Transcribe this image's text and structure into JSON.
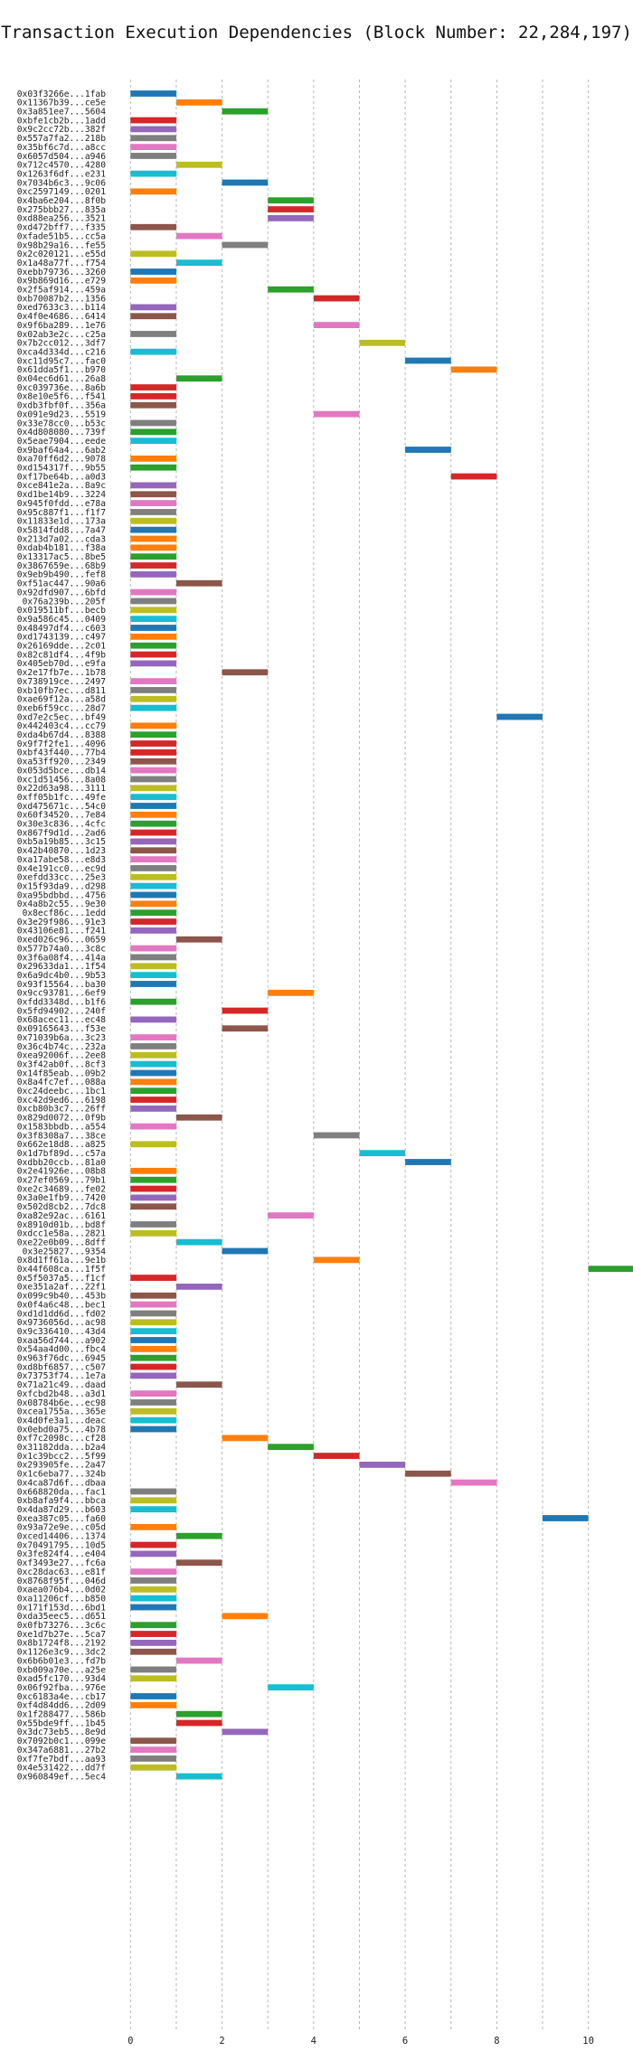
{
  "colors": [
    "#1f77b4",
    "#ff7f0e",
    "#2ca02c",
    "#d62728",
    "#9467bd",
    "#8c564b",
    "#e377c2",
    "#7f7f7f",
    "#bcbd22",
    "#17becf"
  ],
  "chart_data": {
    "type": "bar",
    "orientation": "horizontal",
    "title": "Transaction Execution Dependencies (Block Number: 22,284,197)",
    "xlabel": "",
    "ylabel": "",
    "xlim": [
      -0.5,
      10.6
    ],
    "xticks": [
      0,
      2,
      4,
      6,
      8,
      10
    ],
    "grid": "vertical dashed",
    "legend": "none",
    "bar_width": 1,
    "categories": [
      "0x03f3266e...1fab",
      "0x11367b39...ce5e",
      "0x3a851ee7...5604",
      "0xbfe1cb2b...1add",
      "0x9c2cc72b...382f",
      "0x557a7fa2...218b",
      "0x35bf6c7d...a8cc",
      "0x6057d504...a946",
      "0x712c4570...4280",
      "0x1263f6df...e231",
      "0x7034b6c3...9c06",
      "0xc2597149...0201",
      "0x4ba6e204...8f0b",
      "0x275bbb27...835a",
      "0xd88ea256...3521",
      "0xd472bff7...f335",
      "0xfade51b5...cc5a",
      "0x98b29a16...fe55",
      "0x2c020121...e55d",
      "0x1a48a77f...f754",
      "0xebb79736...3260",
      "0x9b869d16...e729",
      "0x2f5af914...459a",
      "0xb70087b2...1356",
      "0xed7633c3...b114",
      "0x4f0e4686...6414",
      "0x9f6ba289...1e76",
      "0x02ab3e2c...c25a",
      "0x7b2cc012...3df7",
      "0xca4d334d...c216",
      "0xc11d95c7...fac0",
      "0x61dda5f1...b970",
      "0x04ec6d61...26a8",
      "0xc039736e...8a6b",
      "0x8e10e5f6...f541",
      "0xdb3fbf0f...356a",
      "0x091e9d23...5519",
      "0x33e78cc0...b53c",
      "0x4d808080...739f",
      "0x5eae7904...eede",
      "0x9baf64a4...6ab2",
      "0xa70ff6d2...9078",
      "0xd154317f...9b55",
      "0xf17be64b...a0d3",
      "0xce841e2a...8a9c",
      "0xd1be14b9...3224",
      "0x945f0fdd...e78a",
      "0x95c887f1...f1f7",
      "0x11833e1d...173a",
      "0x5814fdd8...7a47",
      "0x213d7a02...cda3",
      "0xdab4b181...f38a",
      "0x13317ac5...8be5",
      "0x3867659e...68b9",
      "0x9eb9b490...fef8",
      "0xf51ac447...90a6",
      "0x92dfd907...6bfd",
      "0x76a239b...205f",
      "0x019511bf...becb",
      "0x9a586c45...0409",
      "0x48497df4...c603",
      "0xd1743139...c497",
      "0x26169dde...2c01",
      "0x82c81df4...4f9b",
      "0x405eb70d...e9fa",
      "0x2e17fb7e...1b78",
      "0x738919ce...2497",
      "0xb10fb7ec...d811",
      "0xae69f12a...a58d",
      "0xeb6f59cc...28d7",
      "0xd7e2c5ec...bf49",
      "0x442403c4...cc79",
      "0xda4b67d4...8388",
      "0x9f7f2fe1...4096",
      "0xbf43f440...77b4",
      "0xa53ff920...2349",
      "0x053d5bce...db14",
      "0xc1d51456...8a08",
      "0x22d63a98...3111",
      "0xff05b1fc...49fe",
      "0xd475671c...54c0",
      "0x60f34520...7e84",
      "0x30e3c836...4cfc",
      "0x867f9d1d...2ad6",
      "0xb5a19b85...3c15",
      "0x42b40870...1d23",
      "0xa17abe58...e8d3",
      "0x4e191cc0...ec9d",
      "0xefdd33cc...25e3",
      "0x15f93da9...d298",
      "0xa95bdbbd...4756",
      "0x4a8b2c55...9e30",
      "0x8ecf86c...1edd",
      "0x3e29f986...91e3",
      "0x43106e81...f241",
      "0xed026c96...0659",
      "0x577b74a0...3c8c",
      "0x3f6a08f4...414a",
      "0x29633da1...1f54",
      "0x6a9dc4b0...9b53",
      "0x93f15564...ba30",
      "0x9cc93781...6ef9",
      "0xfdd3348d...b1f6",
      "0x5fd94902...240f",
      "0x68acec11...ec48",
      "0x09165643...f53e",
      "0x71039b6a...3c23",
      "0x36c4b74c...232a",
      "0xea92006f...2ee8",
      "0x3f42ab0f...8cf3",
      "0x14f85eab...09b2",
      "0x8a4fc7ef...088a",
      "0xc24deebc...1bc1",
      "0xc42d9ed6...6198",
      "0xcb80b3c7...26ff",
      "0x829d0072...0f9b",
      "0x1583bbdb...a554",
      "0x3f8308a7...38ce",
      "0x662e18d8...a825",
      "0x1d7bf89d...c57a",
      "0xdbb20ccb...81a0",
      "0x2e41926e...08b8",
      "0x27ef0569...79b1",
      "0xe2c34689...fe02",
      "0x3a0e1fb9...7420",
      "0x502d8cb2...7dc8",
      "0xa82e92ac...6161",
      "0x8910d01b...bd8f",
      "0xdcc1e58a...2821",
      "0xe22e0b09...8dff",
      "0x3e25827...9354",
      "0x8d1ff61a...9e1b",
      "0x44f608ca...1f5f",
      "0x5f5037a5...f1cf",
      "0xe351a2af...22f1",
      "0x099c9b40...453b",
      "0x0f4a6c48...bec1",
      "0xd1d1dd6d...fd02",
      "0x9736056d...ac98",
      "0x9c336410...43d4",
      "0xaa56d744...a902",
      "0x54aa4d00...fbc4",
      "0x963f76dc...6945",
      "0xd8bf6857...c507",
      "0x73753f74...1e7a",
      "0x71a21c49...daad",
      "0xfcbd2b48...a3d1",
      "0x08784b6e...ec98",
      "0xcea1755a...365e",
      "0x4d0fe3a1...deac",
      "0x0ebd0a75...4b78",
      "0xf7c2098c...cf28",
      "0x31182dda...b2a4",
      "0x1c39bcc2...5f99",
      "0x293905fe...2a47",
      "0x1c6eba77...324b",
      "0x4ca87d6f...dbaa",
      "0x668820da...fac1",
      "0xb8afa9f4...bbca",
      "0x4da87d29...b603",
      "0xea387c05...fa60",
      "0x93a72e9e...c05d",
      "0xced14406...1374",
      "0x70491795...10d5",
      "0x3fe824f4...e404",
      "0xf3493e27...fc6a",
      "0xc28dac63...e81f",
      "0x8768f95f...046d",
      "0xaea076b4...0d02",
      "0xa11206cf...b850",
      "0x171f153d...6bd1",
      "0xda35eec5...d651",
      "0x0fb73276...3c6c",
      "0xe1d7b27e...5ca7",
      "0x8b1724f8...2192",
      "0x1126e3c9...3dc2",
      "0x6b6b01e3...fd7b",
      "0xb009a70e...a25e",
      "0xad5fc170...93d4",
      "0x06f92fba...976e",
      "0xc6183a4e...cb17",
      "0xf4d84dd6...2d09",
      "0x1f288477...586b",
      "0x55bde9ff...1b45",
      "0x3dc73eb5...8e9d",
      "0x7092b0c1...099e",
      "0x347a6881...27b2",
      "0xf7fe7bdf...aa93",
      "0x4e531422...dd7f",
      "0x960849ef...5ec4"
    ],
    "starts": [
      0,
      1,
      2,
      0,
      0,
      0,
      0,
      0,
      1,
      0,
      2,
      0,
      3,
      3,
      3,
      0,
      1,
      2,
      0,
      1,
      0,
      0,
      3,
      4,
      0,
      0,
      4,
      0,
      5,
      0,
      6,
      7,
      1,
      0,
      0,
      0,
      4,
      0,
      0,
      0,
      6,
      0,
      0,
      7,
      0,
      0,
      0,
      0,
      0,
      0,
      0,
      0,
      0,
      0,
      0,
      1,
      0,
      0,
      0,
      0,
      0,
      0,
      0,
      0,
      0,
      2,
      0,
      0,
      0,
      0,
      8,
      0,
      0,
      0,
      0,
      0,
      0,
      0,
      0,
      0,
      0,
      0,
      0,
      0,
      0,
      0,
      0,
      0,
      0,
      0,
      0,
      0,
      0,
      0,
      0,
      1,
      0,
      0,
      0,
      0,
      0,
      3,
      0,
      2,
      0,
      2,
      0,
      0,
      0,
      0,
      0,
      0,
      0,
      0,
      0,
      1,
      0,
      4,
      0,
      5,
      6,
      0,
      0,
      0,
      0,
      0,
      3,
      0,
      0,
      1,
      2,
      4,
      10,
      0,
      1,
      0,
      0,
      0,
      0,
      0,
      0,
      0,
      0,
      0,
      0,
      1,
      0,
      0,
      0,
      0,
      0,
      2,
      3,
      4,
      5,
      6,
      7,
      0,
      0,
      0,
      9,
      0,
      1,
      0,
      0,
      1,
      0,
      0,
      0,
      0,
      0,
      2,
      0,
      0,
      0,
      0,
      1,
      0,
      0,
      3,
      0,
      0,
      1,
      1,
      2,
      0,
      0,
      0,
      0,
      1
    ],
    "colors_idx": [
      0,
      1,
      2,
      3,
      4,
      7,
      6,
      7,
      8,
      9,
      0,
      1,
      2,
      3,
      4,
      5,
      6,
      7,
      8,
      9,
      0,
      1,
      2,
      3,
      4,
      5,
      6,
      7,
      8,
      9,
      0,
      1,
      2,
      3,
      3,
      5,
      6,
      7,
      2,
      9,
      0,
      1,
      2,
      3,
      4,
      5,
      6,
      7,
      8,
      0,
      1,
      1,
      2,
      3,
      4,
      5,
      6,
      7,
      8,
      9,
      0,
      1,
      2,
      3,
      4,
      5,
      6,
      7,
      8,
      9,
      0,
      1,
      2,
      3,
      3,
      5,
      6,
      7,
      8,
      9,
      0,
      1,
      2,
      3,
      4,
      5,
      6,
      7,
      8,
      9,
      0,
      1,
      2,
      3,
      4,
      5,
      6,
      7,
      8,
      9,
      0,
      1,
      2,
      3,
      4,
      5,
      6,
      7,
      8,
      9,
      0,
      1,
      2,
      3,
      4,
      5,
      6,
      7,
      8,
      9,
      0,
      1,
      2,
      3,
      4,
      5,
      6,
      7,
      8,
      9,
      0,
      1,
      2,
      3,
      4,
      5,
      6,
      7,
      8,
      9,
      0,
      1,
      2,
      3,
      4,
      5,
      6,
      7,
      8,
      9,
      0,
      1,
      2,
      3,
      4,
      5,
      6,
      7,
      8,
      9,
      0,
      1,
      2,
      3,
      4,
      5,
      6,
      7,
      8,
      9,
      0,
      1,
      2,
      3,
      4,
      5,
      6,
      7,
      8,
      9,
      0,
      1,
      2,
      3,
      4,
      5,
      6,
      7,
      8,
      9,
      0,
      1,
      2,
      3,
      4,
      5,
      6,
      7,
      8,
      9
    ]
  }
}
